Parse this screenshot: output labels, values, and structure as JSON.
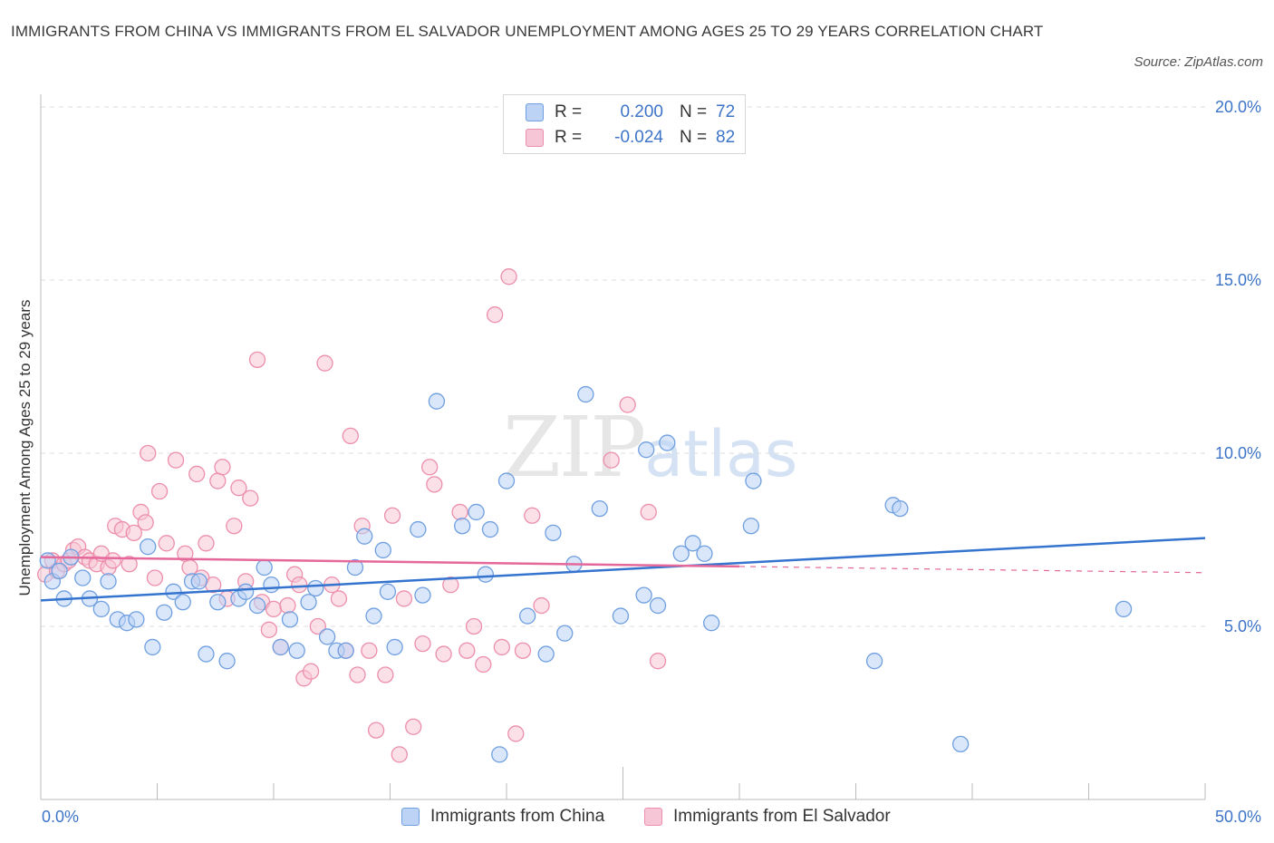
{
  "title": "IMMIGRANTS FROM CHINA VS IMMIGRANTS FROM EL SALVADOR UNEMPLOYMENT AMONG AGES 25 TO 29 YEARS CORRELATION CHART",
  "source": "Source: ZipAtlas.com",
  "watermark": {
    "zip": "ZIP",
    "atlas": "atlas"
  },
  "colors": {
    "china_fill": "#bcd3f5",
    "china_stroke": "#6f9fe0",
    "china_line": "#3474cf",
    "salvador_fill": "#f7c6d6",
    "salvador_stroke": "#ec8eac",
    "salvador_line": "#e4689a",
    "grid": "#dddddd",
    "tick_label": "#3d74c8"
  },
  "legend": {
    "rows": [
      {
        "r_label": "R =",
        "r_value": "0.200",
        "n_label": "N =",
        "n_value": "72"
      },
      {
        "r_label": "R =",
        "r_value": "-0.024",
        "n_label": "N =",
        "n_value": "82"
      }
    ]
  },
  "chart_data": {
    "type": "scatter",
    "title": "IMMIGRANTS FROM CHINA VS IMMIGRANTS FROM EL SALVADOR UNEMPLOYMENT AMONG AGES 25 TO 29 YEARS CORRELATION CHART",
    "xlabel": "",
    "ylabel": "Unemployment Among Ages 25 to 29 years",
    "xlim": [
      0,
      50
    ],
    "ylim": [
      0,
      20
    ],
    "x_tick_labels": [
      "0.0%",
      "50.0%"
    ],
    "y_ticks": [
      5,
      10,
      15,
      20
    ],
    "y_tick_labels": [
      "5.0%",
      "10.0%",
      "15.0%",
      "20.0%"
    ],
    "grid": true,
    "legend_position": "bottom",
    "series": [
      {
        "name": "Immigrants from China",
        "r": 0.2,
        "n": 72,
        "trend": {
          "x0": 0,
          "y0": 5.75,
          "x1": 50,
          "y1": 7.55,
          "solid_until": 50
        },
        "points": [
          [
            0.3,
            6.9
          ],
          [
            0.5,
            6.3
          ],
          [
            0.8,
            6.6
          ],
          [
            1.0,
            5.8
          ],
          [
            1.3,
            7.0
          ],
          [
            1.8,
            6.4
          ],
          [
            2.1,
            5.8
          ],
          [
            2.6,
            5.5
          ],
          [
            2.9,
            6.3
          ],
          [
            3.3,
            5.2
          ],
          [
            3.7,
            5.1
          ],
          [
            4.1,
            5.2
          ],
          [
            4.6,
            7.3
          ],
          [
            4.8,
            4.4
          ],
          [
            5.3,
            5.4
          ],
          [
            5.7,
            6.0
          ],
          [
            6.1,
            5.7
          ],
          [
            6.5,
            6.3
          ],
          [
            6.8,
            6.3
          ],
          [
            7.1,
            4.2
          ],
          [
            7.6,
            5.7
          ],
          [
            8.0,
            4.0
          ],
          [
            8.5,
            5.8
          ],
          [
            8.8,
            6.0
          ],
          [
            9.3,
            5.6
          ],
          [
            9.6,
            6.7
          ],
          [
            9.9,
            6.2
          ],
          [
            10.3,
            4.4
          ],
          [
            10.7,
            5.2
          ],
          [
            11.0,
            4.3
          ],
          [
            11.5,
            5.7
          ],
          [
            11.8,
            6.1
          ],
          [
            12.3,
            4.7
          ],
          [
            12.7,
            4.3
          ],
          [
            13.1,
            4.3
          ],
          [
            13.5,
            6.7
          ],
          [
            13.9,
            7.6
          ],
          [
            14.3,
            5.3
          ],
          [
            14.7,
            7.2
          ],
          [
            14.9,
            6.0
          ],
          [
            15.2,
            4.4
          ],
          [
            16.2,
            7.8
          ],
          [
            16.4,
            5.9
          ],
          [
            17.0,
            11.5
          ],
          [
            18.1,
            7.9
          ],
          [
            18.7,
            8.3
          ],
          [
            19.1,
            6.5
          ],
          [
            19.3,
            7.8
          ],
          [
            19.7,
            1.3
          ],
          [
            20.0,
            9.2
          ],
          [
            20.9,
            5.3
          ],
          [
            21.7,
            4.2
          ],
          [
            22.0,
            7.7
          ],
          [
            22.5,
            4.8
          ],
          [
            22.9,
            6.8
          ],
          [
            23.4,
            11.7
          ],
          [
            24.0,
            8.4
          ],
          [
            24.9,
            5.3
          ],
          [
            25.9,
            5.9
          ],
          [
            26.0,
            10.1
          ],
          [
            26.5,
            5.6
          ],
          [
            26.9,
            10.3
          ],
          [
            27.5,
            7.1
          ],
          [
            28.0,
            7.4
          ],
          [
            28.5,
            7.1
          ],
          [
            28.8,
            5.1
          ],
          [
            30.5,
            7.9
          ],
          [
            30.6,
            9.2
          ],
          [
            35.8,
            4.0
          ],
          [
            36.6,
            8.5
          ],
          [
            36.9,
            8.4
          ],
          [
            39.5,
            1.6
          ],
          [
            46.5,
            5.5
          ]
        ]
      },
      {
        "name": "Immigrants from El Salvador",
        "r": -0.024,
        "n": 82,
        "trend": {
          "x0": 0,
          "y0": 7.0,
          "x1": 50,
          "y1": 6.55,
          "solid_until": 30
        },
        "points": [
          [
            0.2,
            6.5
          ],
          [
            0.5,
            6.9
          ],
          [
            0.7,
            6.6
          ],
          [
            1.0,
            6.8
          ],
          [
            1.2,
            6.9
          ],
          [
            1.4,
            7.2
          ],
          [
            1.6,
            7.3
          ],
          [
            1.9,
            7.0
          ],
          [
            2.1,
            6.9
          ],
          [
            2.4,
            6.8
          ],
          [
            2.6,
            7.1
          ],
          [
            2.9,
            6.7
          ],
          [
            3.1,
            6.9
          ],
          [
            3.2,
            7.9
          ],
          [
            3.5,
            7.8
          ],
          [
            3.8,
            6.8
          ],
          [
            4.0,
            7.7
          ],
          [
            4.3,
            8.3
          ],
          [
            4.5,
            8.0
          ],
          [
            4.6,
            10.0
          ],
          [
            4.9,
            6.4
          ],
          [
            5.1,
            8.9
          ],
          [
            5.4,
            7.4
          ],
          [
            5.8,
            9.8
          ],
          [
            6.2,
            7.1
          ],
          [
            6.4,
            6.7
          ],
          [
            6.7,
            9.4
          ],
          [
            6.9,
            6.4
          ],
          [
            7.1,
            7.4
          ],
          [
            7.4,
            6.2
          ],
          [
            7.6,
            9.2
          ],
          [
            7.8,
            9.6
          ],
          [
            8.0,
            5.8
          ],
          [
            8.3,
            7.9
          ],
          [
            8.5,
            9.0
          ],
          [
            8.8,
            6.3
          ],
          [
            9.0,
            8.7
          ],
          [
            9.3,
            12.7
          ],
          [
            9.5,
            5.7
          ],
          [
            9.8,
            4.9
          ],
          [
            10.0,
            5.5
          ],
          [
            10.3,
            4.4
          ],
          [
            10.6,
            5.6
          ],
          [
            10.9,
            6.5
          ],
          [
            11.1,
            6.2
          ],
          [
            11.3,
            3.5
          ],
          [
            11.6,
            3.7
          ],
          [
            11.9,
            5.0
          ],
          [
            12.2,
            12.6
          ],
          [
            12.5,
            6.2
          ],
          [
            12.8,
            5.8
          ],
          [
            13.1,
            4.3
          ],
          [
            13.3,
            10.5
          ],
          [
            13.6,
            3.6
          ],
          [
            13.8,
            7.9
          ],
          [
            14.1,
            4.3
          ],
          [
            14.4,
            2.0
          ],
          [
            14.8,
            3.6
          ],
          [
            15.1,
            8.2
          ],
          [
            15.4,
            1.3
          ],
          [
            15.6,
            5.8
          ],
          [
            16.0,
            2.1
          ],
          [
            16.4,
            4.5
          ],
          [
            16.7,
            9.6
          ],
          [
            16.9,
            9.1
          ],
          [
            17.3,
            4.2
          ],
          [
            17.6,
            6.2
          ],
          [
            18.0,
            8.3
          ],
          [
            18.3,
            4.3
          ],
          [
            18.6,
            5.0
          ],
          [
            19.0,
            3.9
          ],
          [
            19.5,
            14.0
          ],
          [
            19.8,
            4.4
          ],
          [
            20.1,
            15.1
          ],
          [
            20.4,
            1.9
          ],
          [
            20.7,
            4.3
          ],
          [
            21.1,
            8.2
          ],
          [
            21.5,
            5.6
          ],
          [
            24.5,
            9.8
          ],
          [
            25.2,
            11.4
          ],
          [
            26.1,
            8.3
          ],
          [
            26.5,
            4.0
          ]
        ]
      }
    ]
  },
  "axis_labels": {
    "x_left": "0.0%",
    "x_right": "50.0%",
    "y_5": "5.0%",
    "y_10": "10.0%",
    "y_15": "15.0%",
    "y_20": "20.0%",
    "y_title": "Unemployment Among Ages 25 to 29 years"
  },
  "bottom_legend": {
    "china": "Immigrants from China",
    "salvador": "Immigrants from El Salvador"
  }
}
